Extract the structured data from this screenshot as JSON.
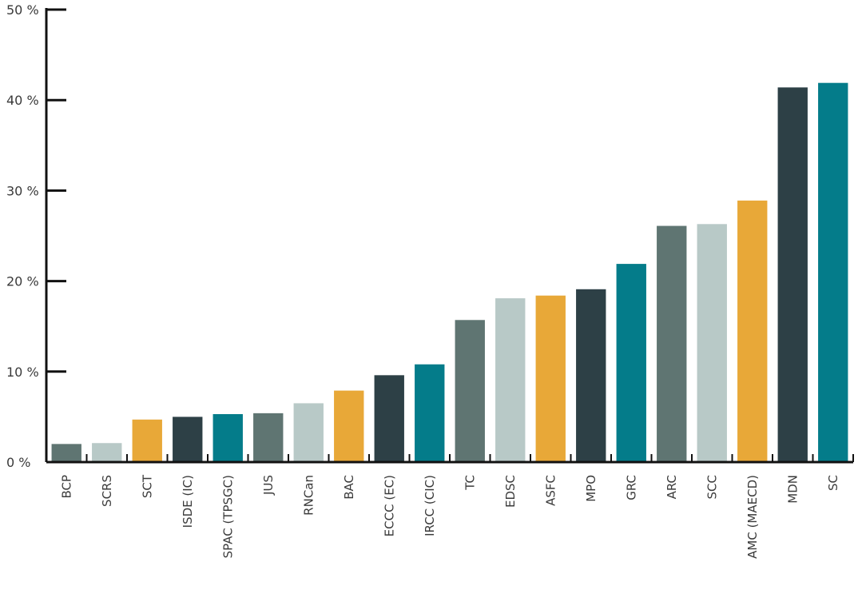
{
  "chart_data": {
    "type": "bar",
    "title": "",
    "xlabel": "",
    "ylabel": "",
    "ylim": [
      0,
      50
    ],
    "yticks": [
      "0 %",
      "10 %",
      "20 %",
      "30 %",
      "40 %",
      "50 %"
    ],
    "ytick_values": [
      0,
      10,
      20,
      30,
      40,
      50
    ],
    "grid": false,
    "categories": [
      "BCP",
      "SCRS",
      "SCT",
      "ISDE (IC)",
      "SPAC (TPSGC)",
      "JUS",
      "RNCan",
      "BAC",
      "ECCC (EC)",
      "IRCC (CIC)",
      "TC",
      "EDSC",
      "ASFC",
      "MPO",
      "GRC",
      "ARC",
      "SCC",
      "AMC (MAECD)",
      "MDN",
      "SC"
    ],
    "values": [
      2.0,
      2.1,
      4.7,
      5.0,
      5.3,
      5.4,
      6.5,
      7.9,
      9.6,
      10.8,
      15.7,
      18.1,
      18.4,
      19.1,
      21.9,
      26.1,
      26.3,
      28.9,
      41.4,
      41.9
    ],
    "colors": [
      "#5f7572",
      "#b8c9c7",
      "#e8a838",
      "#2d4046",
      "#047c8a",
      "#5f7572",
      "#b8c9c7",
      "#e8a838",
      "#2d4046",
      "#047c8a",
      "#5f7572",
      "#b8c9c7",
      "#e8a838",
      "#2d4046",
      "#047c8a",
      "#5f7572",
      "#b8c9c7",
      "#e8a838",
      "#2d4046",
      "#047c8a"
    ]
  }
}
